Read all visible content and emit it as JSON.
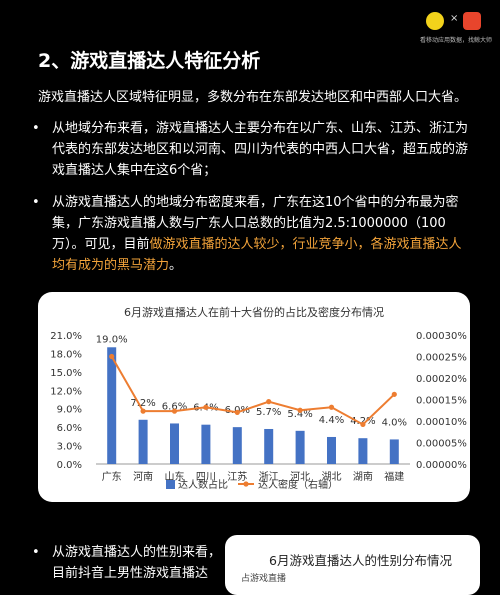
{
  "header": {
    "logo_text": "看移动应用数据，找鲸大师"
  },
  "section": {
    "title": "2、游戏直播达人特征分析",
    "intro": "游戏直播达人区域特征明显，多数分布在东部发达地区和中西部人口大省。",
    "bullets": [
      {
        "dot": "•",
        "text": "从地域分布来看，游戏直播达人主要分布在以广东、山东、江苏、浙江为代表的东部发达地区和以河南、四川为代表的中西人口大省，超五成的游戏直播达人集中在这6个省；"
      },
      {
        "dot": "•",
        "text": "从游戏直播达人的地域分布密度来看，广东在这10个省中的分布最为密集，广东游戏直播人数与广东人口总数的比值为2.5:1000000（100万）。可见，目前",
        "highlight": "做游戏直播的达人较少，行业竞争小，各游戏直播达人均有成为的黑马潜力",
        "tail": "。"
      },
      {
        "dot": "•",
        "text": "从游戏直播达人的性别来看，目前抖音上男性游戏直播达"
      }
    ]
  },
  "chart_data": {
    "type": "bar",
    "title": "6月游戏直播达人在前十大省份的占比及密度分布情况",
    "categories": [
      "广东",
      "河南",
      "山东",
      "四川",
      "江苏",
      "浙江",
      "河北",
      "湖北",
      "湖南",
      "福建"
    ],
    "series": [
      {
        "name": "达人数占比",
        "type": "bar",
        "axis": "left",
        "values": [
          19.0,
          7.2,
          6.6,
          6.4,
          6.0,
          5.7,
          5.4,
          4.4,
          4.2,
          4.0
        ],
        "labels": [
          "19.0%",
          "7.2%",
          "6.6%",
          "6.4%",
          "6.0%",
          "5.7%",
          "5.4%",
          "4.4%",
          "4.2%",
          "4.0%"
        ],
        "color": "#4472c4"
      },
      {
        "name": "达人密度（右轴）",
        "type": "line",
        "axis": "right",
        "values": [
          0.00025,
          0.000123,
          0.000123,
          0.000132,
          0.00012,
          0.000145,
          0.000125,
          0.000132,
          9.2e-05,
          0.000162
        ],
        "color": "#ed7d31"
      }
    ],
    "y_left": {
      "range": [
        0,
        21
      ],
      "ticks": [
        0,
        3,
        6,
        9,
        12,
        15,
        18,
        21
      ],
      "tick_labels": [
        "0.0%",
        "3.0%",
        "6.0%",
        "9.0%",
        "12.0%",
        "15.0%",
        "18.0%",
        "21.0%"
      ]
    },
    "y_right": {
      "range": [
        0,
        0.0003
      ],
      "ticks": [
        0,
        5e-05,
        0.0001,
        0.00015,
        0.0002,
        0.00025,
        0.0003
      ],
      "tick_labels": [
        "0.00000%",
        "0.00005%",
        "0.00010%",
        "0.00015%",
        "0.00020%",
        "0.00025%",
        "0.00030%"
      ]
    },
    "grid": false,
    "legend": "bottom"
  },
  "card2": {
    "title": "6月游戏直播达人的性别分布情况",
    "subtitle": "占游戏直播"
  }
}
